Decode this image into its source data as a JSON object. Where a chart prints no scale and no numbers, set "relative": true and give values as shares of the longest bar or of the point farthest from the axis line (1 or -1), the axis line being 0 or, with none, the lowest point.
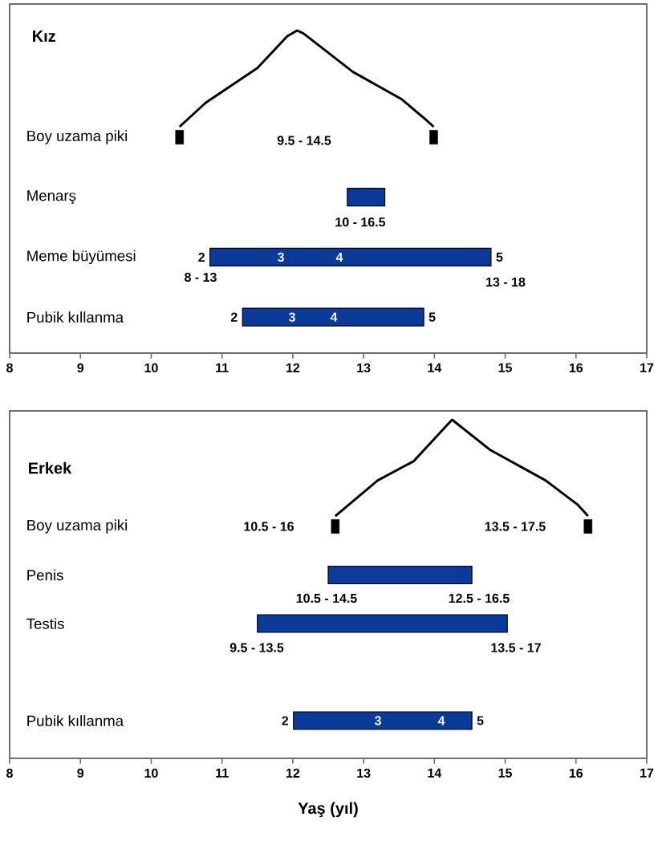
{
  "chart_data": [
    {
      "type": "bar",
      "orientation": "horizontal",
      "title": "Kız",
      "categories": [
        "Boy uzama piki",
        "Menarş",
        "Meme büyümesi",
        "Pubik kıllanma"
      ],
      "series": [
        {
          "type": "bar",
          "color": "#0b3a98",
          "values": [
            null,
            0.53,
            3.97,
            2.56
          ],
          "base": [
            null,
            12.77,
            10.83,
            11.29
          ]
        },
        {
          "type": "scatter",
          "color": "#000000",
          "marker": "square",
          "values": [
            10.4,
            null,
            null,
            null
          ]
        },
        {
          "type": "scatter",
          "color": "#000000",
          "marker": "square",
          "values": [
            13.99,
            null,
            null,
            null
          ]
        }
      ],
      "xlim": [
        8,
        17
      ],
      "xticks": [
        8,
        9,
        10,
        11,
        12,
        13,
        14,
        15,
        16,
        17
      ],
      "annotations": [
        "9.5 - 14.5",
        "10 - 16.5",
        "8 - 13",
        "13 - 18",
        "3",
        "4",
        "3",
        "4",
        {
          "text": "2",
          "x": 10.83,
          "y": "Meme büyümesi"
        },
        {
          "text": "5",
          "x": 14.8,
          "y": "Meme büyümesi"
        },
        {
          "text": "2",
          "x": 11.29,
          "y": "Pubik kıllanma"
        },
        {
          "text": "5",
          "x": 13.85,
          "y": "Pubik kıllanma"
        }
      ]
    },
    {
      "type": "line",
      "relative": true,
      "xlim": [
        8,
        17
      ],
      "color": "#000000",
      "x": [
        10.4,
        10.77,
        11.5,
        11.92,
        12.06,
        12.15,
        12.85,
        13.53,
        13.87,
        13.99
      ],
      "values": [
        0,
        0.25,
        0.61,
        0.94,
        1,
        0.97,
        0.57,
        0.29,
        0.08,
        0
      ]
    },
    {
      "type": "bar",
      "orientation": "horizontal",
      "title": "Erkek",
      "xlabel": "Yaş (yıl)",
      "categories": [
        "Boy uzama piki",
        "Penis",
        "Testis",
        null,
        "Pubik kıllanma"
      ],
      "series": [
        {
          "type": "bar",
          "color": "#0b3a98",
          "values": [
            null,
            2.03,
            3.53,
            null,
            2.52
          ],
          "base": [
            null,
            12.5,
            11.5,
            null,
            12.01
          ]
        },
        {
          "type": "scatter",
          "color": "#000000",
          "marker": "square",
          "values": [
            12.6,
            null,
            null,
            null,
            null
          ]
        },
        {
          "type": "scatter",
          "color": "#000000",
          "marker": "square",
          "values": [
            16.17,
            null,
            null,
            null,
            null
          ]
        }
      ],
      "xlim": [
        8,
        17
      ],
      "xticks": [
        8,
        9,
        10,
        11,
        12,
        13,
        14,
        15,
        16,
        17
      ],
      "annotations": [
        "10.5 - 16",
        "13.5 - 17.5",
        "10.5 - 14.5",
        "12.5 - 16.5",
        "9.5 - 13.5",
        "13.5 - 17",
        "3",
        "4",
        {
          "text": "2",
          "x": 12.01,
          "y": "Pubik kıllanma"
        },
        {
          "text": "5",
          "x": 14.53,
          "y": "Pubik kıllanma"
        }
      ]
    },
    {
      "type": "line",
      "relative": true,
      "xlim": [
        8,
        17
      ],
      "color": "#000000",
      "x": [
        12.6,
        13.2,
        13.71,
        14.16,
        14.25,
        14.78,
        15.57,
        16.02,
        16.17
      ],
      "values": [
        0,
        0.37,
        0.57,
        0.93,
        1,
        0.69,
        0.37,
        0.12,
        0
      ]
    }
  ]
}
